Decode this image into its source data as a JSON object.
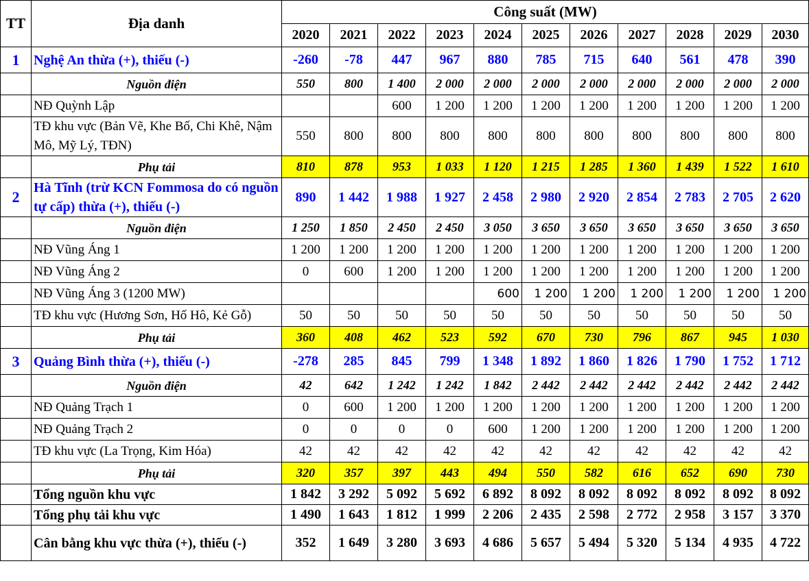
{
  "header": {
    "tt": "TT",
    "place": "Địa danh",
    "capacity": "Công suất (MW)",
    "years": [
      "2020",
      "2021",
      "2022",
      "2023",
      "2024",
      "2025",
      "2026",
      "2027",
      "2028",
      "2029",
      "2030"
    ]
  },
  "rows": [
    {
      "kind": "prov",
      "tt": "1",
      "name": "Nghệ An thừa (+), thiếu (-)",
      "values": [
        "-260",
        "-78",
        "447",
        "967",
        "880",
        "785",
        "715",
        "640",
        "561",
        "478",
        "390"
      ]
    },
    {
      "kind": "src",
      "name": "Nguồn điện",
      "values": [
        "550",
        "800",
        "1 400",
        "2 000",
        "2 000",
        "2 000",
        "2 000",
        "2 000",
        "2 000",
        "2 000",
        "2 000"
      ]
    },
    {
      "kind": "plant",
      "name": "NĐ Quỳnh Lập",
      "values": [
        "",
        "",
        "600",
        "1 200",
        "1 200",
        "1 200",
        "1 200",
        "1 200",
        "1 200",
        "1 200",
        "1 200"
      ]
    },
    {
      "kind": "plant",
      "name": "TĐ khu vực (Bản Vẽ, Khe Bố, Chi Khê, Nậm Mô, Mỹ Lý, TĐN)",
      "values": [
        "550",
        "800",
        "800",
        "800",
        "800",
        "800",
        "800",
        "800",
        "800",
        "800",
        "800"
      ]
    },
    {
      "kind": "load",
      "name": "Phụ tải",
      "values": [
        "810",
        "878",
        "953",
        "1 033",
        "1 120",
        "1 215",
        "1 285",
        "1 360",
        "1 439",
        "1 522",
        "1 610"
      ]
    },
    {
      "kind": "prov",
      "tt": "2",
      "name": "Hà Tĩnh (trừ KCN Fommosa do có nguồn tự cấp) thừa (+), thiếu (-)",
      "values": [
        "890",
        "1 442",
        "1 988",
        "1 927",
        "2 458",
        "2 980",
        "2 920",
        "2 854",
        "2 783",
        "2 705",
        "2 620"
      ]
    },
    {
      "kind": "src",
      "name": "Nguồn điện",
      "values": [
        "1 250",
        "1 850",
        "2 450",
        "2 450",
        "3 050",
        "3 650",
        "3 650",
        "3 650",
        "3 650",
        "3 650",
        "3 650"
      ]
    },
    {
      "kind": "plant",
      "name": "NĐ Vũng Áng 1",
      "values": [
        "1 200",
        "1 200",
        "1 200",
        "1 200",
        "1 200",
        "1 200",
        "1 200",
        "1 200",
        "1 200",
        "1 200",
        "1 200"
      ]
    },
    {
      "kind": "plant",
      "name": "NĐ Vũng Áng 2",
      "values": [
        "0",
        "600",
        "1 200",
        "1 200",
        "1 200",
        "1 200",
        "1 200",
        "1 200",
        "1 200",
        "1 200",
        "1 200"
      ]
    },
    {
      "kind": "plant-sans",
      "name": "NĐ Vũng Áng 3 (1200 MW)",
      "values": [
        "",
        "",
        "",
        "",
        "600",
        "1 200",
        "1 200",
        "1 200",
        "1 200",
        "1 200",
        "1 200"
      ]
    },
    {
      "kind": "plant",
      "name": "TĐ khu vực (Hương Sơn, Hố Hô, Kẻ Gỗ)",
      "values": [
        "50",
        "50",
        "50",
        "50",
        "50",
        "50",
        "50",
        "50",
        "50",
        "50",
        "50"
      ]
    },
    {
      "kind": "load",
      "name": "Phụ tải",
      "values": [
        "360",
        "408",
        "462",
        "523",
        "592",
        "670",
        "730",
        "796",
        "867",
        "945",
        "1 030"
      ]
    },
    {
      "kind": "prov",
      "tt": "3",
      "name": "Quảng Bình thừa (+), thiếu (-)",
      "values": [
        "-278",
        "285",
        "845",
        "799",
        "1 348",
        "1 892",
        "1 860",
        "1 826",
        "1 790",
        "1 752",
        "1 712"
      ]
    },
    {
      "kind": "src",
      "name": "Nguồn điện",
      "values": [
        "42",
        "642",
        "1 242",
        "1 242",
        "1 842",
        "2 442",
        "2 442",
        "2 442",
        "2 442",
        "2 442",
        "2 442"
      ]
    },
    {
      "kind": "plant",
      "name": "NĐ Quảng Trạch 1",
      "values": [
        "0",
        "600",
        "1 200",
        "1 200",
        "1 200",
        "1 200",
        "1 200",
        "1 200",
        "1 200",
        "1 200",
        "1 200"
      ]
    },
    {
      "kind": "plant",
      "name": "NĐ Quảng Trạch 2",
      "values": [
        "0",
        "0",
        "0",
        "0",
        "600",
        "1 200",
        "1 200",
        "1 200",
        "1 200",
        "1 200",
        "1 200"
      ]
    },
    {
      "kind": "plant",
      "name": "TĐ khu vực (La Trọng, Kim Hóa)",
      "values": [
        "42",
        "42",
        "42",
        "42",
        "42",
        "42",
        "42",
        "42",
        "42",
        "42",
        "42"
      ]
    },
    {
      "kind": "load",
      "name": "Phụ tải",
      "values": [
        "320",
        "357",
        "397",
        "443",
        "494",
        "550",
        "582",
        "616",
        "652",
        "690",
        "730"
      ]
    },
    {
      "kind": "total",
      "name": "Tổng nguồn khu vực",
      "values": [
        "1 842",
        "3 292",
        "5 092",
        "5 692",
        "6 892",
        "8 092",
        "8 092",
        "8 092",
        "8 092",
        "8 092",
        "8 092"
      ]
    },
    {
      "kind": "total",
      "name": "Tổng phụ tải khu vực",
      "values": [
        "1 490",
        "1 643",
        "1 812",
        "1 999",
        "2 206",
        "2 435",
        "2 598",
        "2 772",
        "2 958",
        "3 157",
        "3 370"
      ]
    },
    {
      "kind": "total",
      "name": "Cân bằng khu vực thừa (+), thiếu (-)",
      "values": [
        "352",
        "1 649",
        "3 280",
        "3 693",
        "4 686",
        "5 657",
        "5 494",
        "5 320",
        "5 134",
        "4 935",
        "4 722"
      ]
    }
  ],
  "colors": {
    "province_text": "#0000ff",
    "load_highlight": "#ffff00"
  }
}
